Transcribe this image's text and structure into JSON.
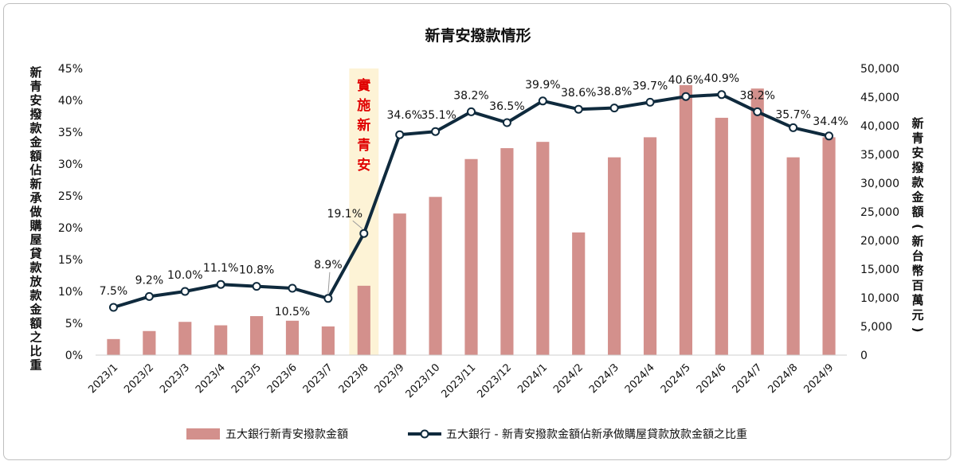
{
  "chart_data": {
    "type": "bar+line",
    "title": "新青安撥款情形",
    "categories": [
      "2023/1",
      "2023/2",
      "2023/3",
      "2023/4",
      "2023/5",
      "2023/6",
      "2023/7",
      "2023/8",
      "2023/9",
      "2023/10",
      "2023/11",
      "2023/12",
      "2024/1",
      "2024/2",
      "2024/3",
      "2024/4",
      "2024/5",
      "2024/6",
      "2024/7",
      "2024/8",
      "2024/9"
    ],
    "series": [
      {
        "name": "五大銀行新青安撥款金額",
        "type": "bar",
        "axis": "right",
        "color": "#d3908c",
        "values": [
          2800,
          4200,
          5800,
          5200,
          6800,
          6000,
          5000,
          12100,
          24700,
          27600,
          34200,
          36100,
          37200,
          21400,
          34500,
          38000,
          47100,
          41400,
          46500,
          34500,
          38000
        ]
      },
      {
        "name": "五大銀行 - 新青安撥款金額佔新承做購屋貸款放款金額之比重",
        "type": "line",
        "axis": "left",
        "color": "#0f2a3d",
        "values": [
          7.5,
          9.2,
          10.0,
          11.1,
          10.8,
          10.5,
          8.9,
          19.1,
          34.6,
          35.1,
          38.2,
          36.5,
          39.9,
          38.6,
          38.8,
          39.7,
          40.6,
          40.9,
          38.2,
          35.7,
          34.4
        ],
        "labels": [
          "7.5%",
          "9.2%",
          "10.0%",
          "11.1%",
          "10.8%",
          "10.5%",
          "8.9%",
          "19.1%",
          "34.6%",
          "35.1%",
          "38.2%",
          "36.5%",
          "39.9%",
          "38.6%",
          "38.8%",
          "39.7%",
          "40.6%",
          "40.9%",
          "38.2%",
          "35.7%",
          "34.4%"
        ]
      }
    ],
    "y_left": {
      "label": "新青安撥款金額佔新承做購屋貸款放款金額之比重",
      "range": [
        0,
        45
      ],
      "ticks": [
        "0%",
        "5%",
        "10%",
        "15%",
        "20%",
        "25%",
        "30%",
        "35%",
        "40%",
        "45%"
      ]
    },
    "y_right": {
      "label": "新青安撥款金額(新台幣百萬元)",
      "range": [
        0,
        50000
      ],
      "ticks": [
        "0",
        "5,000",
        "10,000",
        "15,000",
        "20,000",
        "25,000",
        "30,000",
        "35,000",
        "40,000",
        "45,000",
        "50,000"
      ]
    },
    "annotation": {
      "text": "實施新青安",
      "category": "2023/8",
      "text_color": "#e00000",
      "band_color": "#fdf3d6"
    },
    "legend_position": "bottom",
    "grid": false
  }
}
